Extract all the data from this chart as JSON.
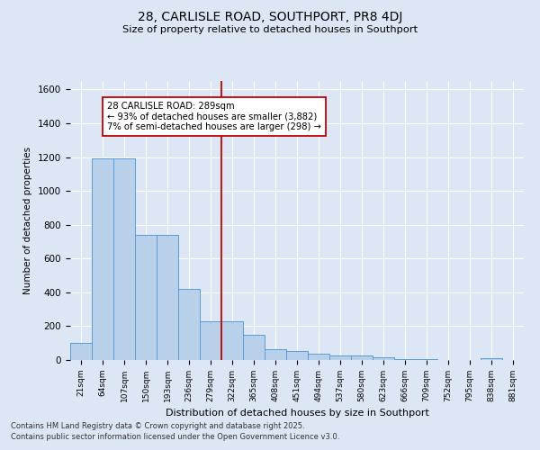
{
  "title1": "28, CARLISLE ROAD, SOUTHPORT, PR8 4DJ",
  "title2": "Size of property relative to detached houses in Southport",
  "xlabel": "Distribution of detached houses by size in Southport",
  "ylabel": "Number of detached properties",
  "categories": [
    "21sqm",
    "64sqm",
    "107sqm",
    "150sqm",
    "193sqm",
    "236sqm",
    "279sqm",
    "322sqm",
    "365sqm",
    "408sqm",
    "451sqm",
    "494sqm",
    "537sqm",
    "580sqm",
    "623sqm",
    "666sqm",
    "709sqm",
    "752sqm",
    "795sqm",
    "838sqm",
    "881sqm"
  ],
  "values": [
    100,
    1190,
    1190,
    740,
    740,
    420,
    230,
    230,
    150,
    65,
    55,
    35,
    25,
    25,
    15,
    5,
    5,
    0,
    0,
    8,
    0
  ],
  "bar_color": "#b8d0ea",
  "bar_edge_color": "#5b9bd5",
  "bg_color": "#dce6f5",
  "grid_color": "#ffffff",
  "vline_x": 6.5,
  "vline_color": "#c00000",
  "annot_line1": "28 CARLISLE ROAD: 289sqm",
  "annot_line2": "← 93% of detached houses are smaller (3,882)",
  "annot_line3": "7% of semi-detached houses are larger (298) →",
  "annotation_box_color": "#ffffff",
  "annotation_box_edge": "#c00000",
  "footer1": "Contains HM Land Registry data © Crown copyright and database right 2025.",
  "footer2": "Contains public sector information licensed under the Open Government Licence v3.0.",
  "ylim": [
    0,
    1650
  ],
  "yticks": [
    0,
    200,
    400,
    600,
    800,
    1000,
    1200,
    1400,
    1600
  ]
}
